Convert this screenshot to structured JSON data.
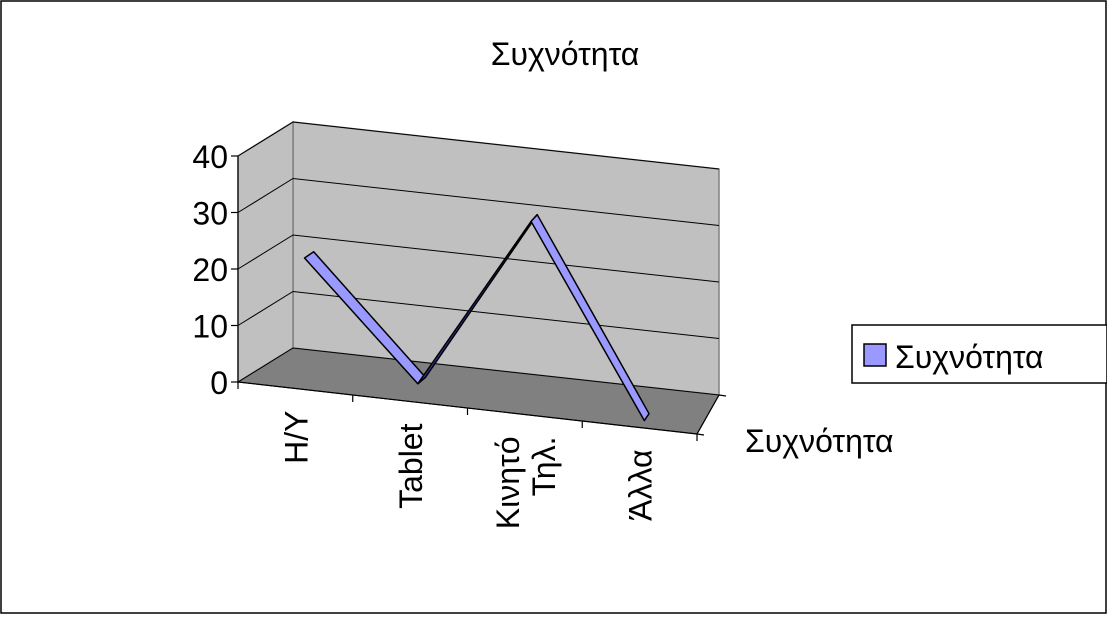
{
  "chart_data": {
    "type": "line",
    "style": "3d-ribbon",
    "title": "Συχνότητα",
    "categories": [
      "Η/Υ",
      "Tablet",
      "Κινητό Τηλ.",
      "Άλλα"
    ],
    "category_lines": [
      [
        "Η/Υ"
      ],
      [
        "Tablet"
      ],
      [
        "Κινητό",
        "Τηλ."
      ],
      [
        "Άλλα"
      ]
    ],
    "series": [
      {
        "name": "Συχνότητα",
        "values": [
          22,
          2,
          33,
          0
        ],
        "color": "#9999ff"
      }
    ],
    "series_axis_label": "Συχνότητα",
    "ylim": [
      0,
      40
    ],
    "yticks": [
      0,
      10,
      20,
      30,
      40
    ],
    "grid": true,
    "legend": "right",
    "colors": {
      "wall": "#c0c0c0",
      "floor": "#808080",
      "ribbon": "#9999ff",
      "ribbon_dark": "#333399"
    }
  }
}
